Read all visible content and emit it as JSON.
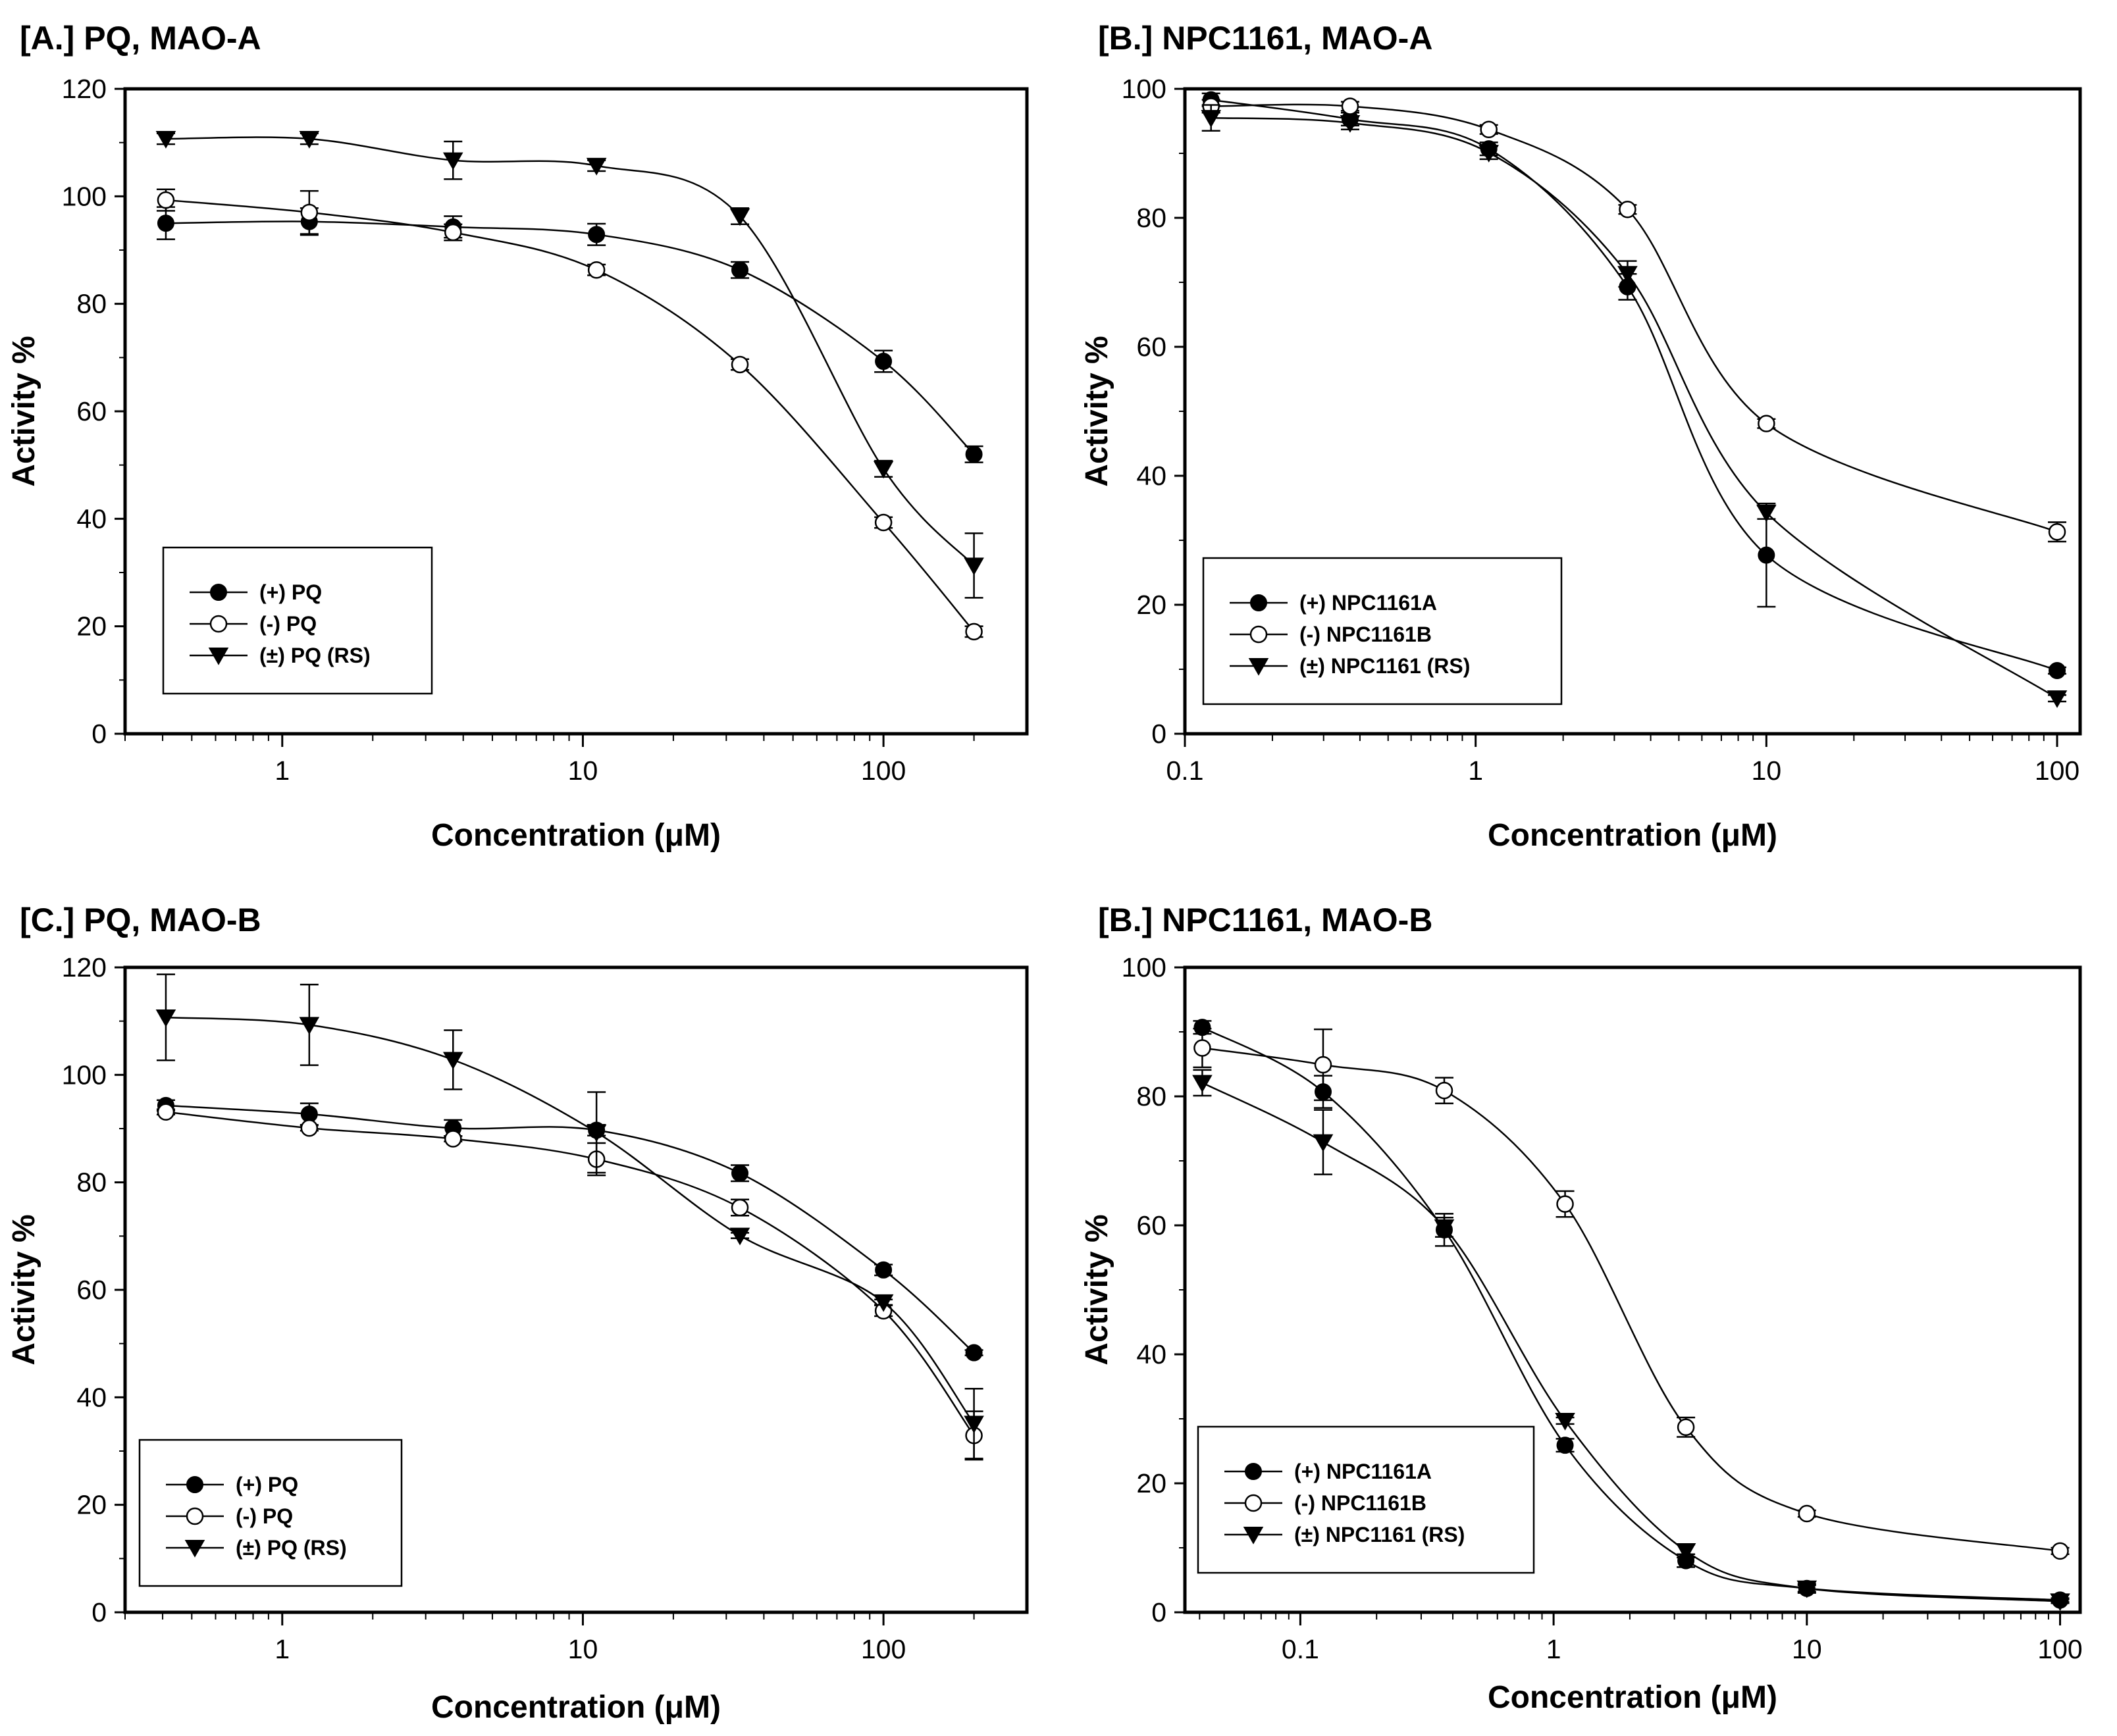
{
  "chart_data": [
    {
      "type": "line",
      "title": "[A.] PQ, MAO-A",
      "xlabel": "Concentration (μM)",
      "ylabel": "Activity %",
      "xscale": "log",
      "xlim": [
        0.3,
        300
      ],
      "ylim": [
        0,
        120
      ],
      "yticks": [
        0,
        20,
        40,
        60,
        80,
        100,
        120
      ],
      "ytick_labels": [
        "0",
        "20",
        "40",
        "60",
        "80",
        "100",
        "120"
      ],
      "xticks": [
        1,
        10,
        100
      ],
      "xtick_labels": [
        "1",
        "10",
        "100"
      ],
      "legend_position": "lower-left",
      "series": [
        {
          "name": "(+) PQ",
          "marker": "filled-circle",
          "x": [
            0.41,
            1.23,
            3.7,
            11.1,
            33.3,
            100,
            200
          ],
          "y": [
            95,
            95.3,
            94.3,
            92.9,
            86.3,
            69.3,
            52
          ],
          "err": [
            3,
            2.5,
            2,
            2,
            1.5,
            2,
            1.5
          ]
        },
        {
          "name": "(-) PQ",
          "marker": "open-circle",
          "x": [
            0.41,
            1.23,
            3.7,
            11.1,
            33.3,
            100,
            200
          ],
          "y": [
            99.3,
            97,
            93.3,
            86.3,
            68.7,
            39.3,
            19
          ],
          "err": [
            2,
            4,
            1.5,
            1,
            1,
            1,
            1
          ]
        },
        {
          "name": "(±) PQ (RS)",
          "marker": "filled-triangle-down",
          "x": [
            0.41,
            1.23,
            3.7,
            11.1,
            33.3,
            100,
            200
          ],
          "y": [
            110.7,
            110.7,
            106.7,
            105.7,
            96.3,
            49.3,
            31.3
          ],
          "err": [
            1,
            1,
            3.5,
            1,
            1.5,
            1.5,
            6
          ]
        }
      ]
    },
    {
      "type": "line",
      "title": "[B.] NPC1161, MAO-A",
      "xlabel": "Concentration (μM)",
      "ylabel": "Activity %",
      "xscale": "log",
      "xlim": [
        0.1,
        120
      ],
      "ylim": [
        0,
        100
      ],
      "yticks": [
        0,
        20,
        40,
        60,
        80,
        100
      ],
      "ytick_labels": [
        "0",
        "20",
        "40",
        "60",
        "80",
        "100"
      ],
      "xticks": [
        0.1,
        1,
        10,
        100
      ],
      "xtick_labels": [
        "0.1",
        "1",
        "10",
        "100"
      ],
      "legend_position": "lower-left",
      "series": [
        {
          "name": "(+) NPC1161A",
          "marker": "filled-circle",
          "x": [
            0.123,
            0.37,
            1.11,
            3.33,
            10,
            100
          ],
          "y": [
            98.3,
            95.3,
            90.7,
            69.3,
            27.7,
            9.8
          ],
          "err": [
            1,
            1,
            1,
            2,
            8,
            0.5
          ]
        },
        {
          "name": "(-) NPC1161B",
          "marker": "open-circle",
          "x": [
            0.123,
            0.37,
            1.11,
            3.33,
            10,
            100
          ],
          "y": [
            97.3,
            97.3,
            93.7,
            81.3,
            48.1,
            31.3
          ],
          "err": [
            1,
            0.7,
            0.7,
            0.7,
            0.7,
            1.5
          ]
        },
        {
          "name": "(±) NPC1161 (RS)",
          "marker": "filled-triangle-down",
          "x": [
            0.123,
            0.37,
            1.11,
            3.33,
            10,
            100
          ],
          "y": [
            95.5,
            94.7,
            90.1,
            71.3,
            34.3,
            5.5
          ],
          "err": [
            2,
            1,
            1,
            2,
            1,
            0.5
          ]
        }
      ]
    },
    {
      "type": "line",
      "title": "[C.] PQ, MAO-B",
      "xlabel": "Concentration (μM)",
      "ylabel": "Activity %",
      "xscale": "log",
      "xlim": [
        0.3,
        300
      ],
      "ylim": [
        0,
        120
      ],
      "yticks": [
        0,
        20,
        40,
        60,
        80,
        100,
        120
      ],
      "ytick_labels": [
        "0",
        "20",
        "40",
        "60",
        "80",
        "100",
        "120"
      ],
      "xticks": [
        1,
        10,
        100
      ],
      "xtick_labels": [
        "1",
        "10",
        "100"
      ],
      "legend_position": "lower-left",
      "series": [
        {
          "name": "(+) PQ",
          "marker": "filled-circle",
          "x": [
            0.41,
            1.23,
            3.7,
            11.1,
            33.3,
            100,
            200
          ],
          "y": [
            94.3,
            92.7,
            90.1,
            89.7,
            81.7,
            63.7,
            48.3
          ],
          "err": [
            1,
            2,
            1.5,
            1,
            1.5,
            1,
            0.5
          ]
        },
        {
          "name": "(-) PQ",
          "marker": "open-circle",
          "x": [
            0.41,
            1.23,
            3.7,
            11.1,
            33.3,
            100,
            200
          ],
          "y": [
            93.1,
            90.1,
            88.1,
            84.3,
            75.3,
            56.1,
            32.9
          ],
          "err": [
            0.5,
            0.5,
            0.5,
            3,
            1.5,
            1,
            4.5
          ]
        },
        {
          "name": "(±) PQ (RS)",
          "marker": "filled-triangle-down",
          "x": [
            0.41,
            1.23,
            3.7,
            11.1,
            33.3,
            100,
            200
          ],
          "y": [
            110.7,
            109.3,
            102.8,
            89.3,
            70.1,
            57.7,
            35.1
          ],
          "err": [
            8,
            7.5,
            5.5,
            7.5,
            0.5,
            0.5,
            6.5
          ]
        }
      ]
    },
    {
      "type": "line",
      "title": "[B.] NPC1161, MAO-B",
      "xlabel": "Concentration (μM)",
      "ylabel": "Activity %",
      "xscale": "log",
      "xlim": [
        0.035,
        120
      ],
      "ylim": [
        0,
        100
      ],
      "yticks": [
        0,
        20,
        40,
        60,
        80,
        100
      ],
      "ytick_labels": [
        "0",
        "20",
        "40",
        "60",
        "80",
        "100"
      ],
      "xticks": [
        0.1,
        1,
        10,
        100
      ],
      "xtick_labels": [
        "0.1",
        "1",
        "10",
        "100"
      ],
      "legend_position": "lower-left",
      "series": [
        {
          "name": "(+) NPC1161A",
          "marker": "filled-circle",
          "x": [
            0.041,
            0.123,
            0.37,
            1.11,
            3.33,
            10,
            100
          ],
          "y": [
            90.7,
            80.7,
            59.3,
            25.9,
            8,
            3.7,
            1.9
          ],
          "err": [
            1,
            2.5,
            2.5,
            1,
            1,
            0.7,
            0.3
          ]
        },
        {
          "name": "(-) NPC1161B",
          "marker": "open-circle",
          "x": [
            0.041,
            0.123,
            0.37,
            1.11,
            3.33,
            10,
            100
          ],
          "y": [
            87.5,
            84.9,
            80.9,
            63.3,
            28.7,
            15.3,
            9.5
          ],
          "err": [
            3,
            5.5,
            2,
            2,
            1.5,
            0.5,
            0.5
          ]
        },
        {
          "name": "(±) NPC1161 (RS)",
          "marker": "filled-triangle-down",
          "x": [
            0.041,
            0.123,
            0.37,
            1.11,
            3.33,
            10,
            100
          ],
          "y": [
            82.1,
            72.9,
            59.7,
            29.7,
            9.5,
            3.7,
            1.7
          ],
          "err": [
            2,
            5,
            1.5,
            0.5,
            1,
            0.5,
            0.3
          ]
        }
      ]
    }
  ]
}
